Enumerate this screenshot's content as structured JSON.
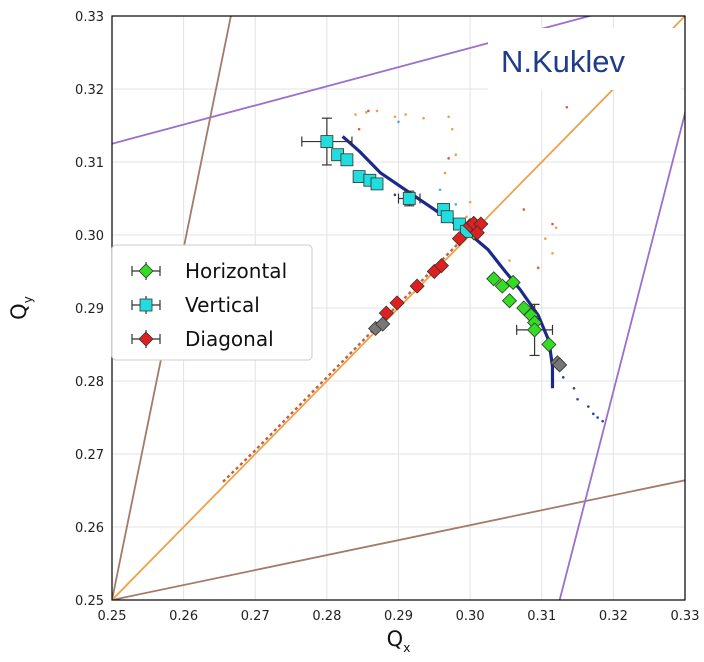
{
  "annotation": "N.Kuklev",
  "chart_data": {
    "type": "scatter",
    "xlabel": "Q",
    "xlabel_sub": "x",
    "ylabel": "Q",
    "ylabel_sub": "y",
    "xlim": [
      0.25,
      0.33
    ],
    "ylim": [
      0.25,
      0.33
    ],
    "x_ticks": [
      "0.25",
      "0.26",
      "0.27",
      "0.28",
      "0.29",
      "0.30",
      "0.31",
      "0.32",
      "0.33"
    ],
    "y_ticks": [
      "0.25",
      "0.26",
      "0.27",
      "0.28",
      "0.29",
      "0.30",
      "0.31",
      "0.32",
      "0.33"
    ],
    "grid": true,
    "legend_position": "center-left",
    "series": [
      {
        "name": "Horizontal",
        "color": "#33dd22",
        "marker": "diamond",
        "points": [
          [
            0.3005,
            0.3003
          ],
          [
            0.3033,
            0.294
          ],
          [
            0.3045,
            0.293
          ],
          [
            0.306,
            0.2935
          ],
          [
            0.3055,
            0.291
          ],
          [
            0.3075,
            0.29
          ],
          [
            0.3085,
            0.289
          ],
          [
            0.309,
            0.288
          ],
          [
            0.309,
            0.287
          ],
          [
            0.311,
            0.285
          ]
        ],
        "errors": [
          {
            "x": 0.309,
            "y": 0.287,
            "ex": 0.0025,
            "ey": 0.0035
          }
        ]
      },
      {
        "name": "Vertical",
        "color": "#22dddd",
        "marker": "square",
        "points": [
          [
            0.28,
            0.3128
          ],
          [
            0.2815,
            0.311
          ],
          [
            0.2828,
            0.3103
          ],
          [
            0.2845,
            0.308
          ],
          [
            0.286,
            0.3075
          ],
          [
            0.287,
            0.307
          ],
          [
            0.2915,
            0.305
          ],
          [
            0.2963,
            0.3035
          ],
          [
            0.2968,
            0.3025
          ],
          [
            0.2985,
            0.3015
          ],
          [
            0.2995,
            0.3005
          ]
        ],
        "errors": [
          {
            "x": 0.28,
            "y": 0.3128,
            "ex": 0.0035,
            "ey": 0.0032
          },
          {
            "x": 0.2915,
            "y": 0.305,
            "ex": 0.0015,
            "ey": 0.001
          }
        ]
      },
      {
        "name": "Diagonal",
        "color": "#e02020",
        "marker": "diamond",
        "points": [
          [
            0.2883,
            0.2893
          ],
          [
            0.2898,
            0.2907
          ],
          [
            0.2926,
            0.293
          ],
          [
            0.295,
            0.295
          ],
          [
            0.296,
            0.2958
          ],
          [
            0.2985,
            0.2995
          ],
          [
            0.3,
            0.3013
          ],
          [
            0.3005,
            0.3016
          ],
          [
            0.3015,
            0.3015
          ],
          [
            0.301,
            0.3003
          ]
        ],
        "errors": []
      }
    ],
    "grey_markers": [
      [
        0.2868,
        0.2872
      ],
      [
        0.2878,
        0.2878
      ],
      [
        0.3122,
        0.2825
      ],
      [
        0.3125,
        0.2822
      ]
    ],
    "resonance_lines": [
      {
        "color": "#a47a68",
        "points": [
          [
            0.25,
            0.25
          ],
          [
            0.2666,
            0.33
          ]
        ]
      },
      {
        "color": "#a47a68",
        "points": [
          [
            0.25,
            0.25
          ],
          [
            0.33,
            0.2664
          ]
        ]
      },
      {
        "color": "#f0a048",
        "points": [
          [
            0.25,
            0.25
          ],
          [
            0.33,
            0.33
          ]
        ]
      },
      {
        "color": "#9c6fcf",
        "points": [
          [
            0.25,
            0.3125
          ],
          [
            0.33,
            0.3335
          ]
        ]
      },
      {
        "color": "#9c6fcf",
        "points": [
          [
            0.3125,
            0.25
          ],
          [
            0.3335,
            0.33
          ]
        ]
      }
    ],
    "tune_track_1": [
      [
        0.2822,
        0.3135
      ],
      [
        0.2845,
        0.3115
      ],
      [
        0.2875,
        0.3085
      ],
      [
        0.2905,
        0.3065
      ],
      [
        0.2935,
        0.3045
      ],
      [
        0.2965,
        0.3025
      ],
      [
        0.2995,
        0.3005
      ],
      [
        0.3025,
        0.298
      ],
      [
        0.3045,
        0.2955
      ],
      [
        0.307,
        0.2925
      ],
      [
        0.3095,
        0.289
      ],
      [
        0.311,
        0.2855
      ],
      [
        0.3115,
        0.282
      ],
      [
        0.3115,
        0.279
      ]
    ],
    "tune_track_2": [
      [
        0.2655,
        0.2662
      ],
      [
        0.27,
        0.2705
      ],
      [
        0.275,
        0.2755
      ],
      [
        0.28,
        0.2805
      ],
      [
        0.285,
        0.2855
      ],
      [
        0.29,
        0.2905
      ],
      [
        0.295,
        0.2955
      ],
      [
        0.2985,
        0.299
      ]
    ],
    "scatter_dots": [
      {
        "color": "#f0a048",
        "pts": [
          [
            0.284,
            0.3165
          ],
          [
            0.2855,
            0.3168
          ],
          [
            0.287,
            0.317
          ],
          [
            0.2895,
            0.3162
          ],
          [
            0.291,
            0.3165
          ],
          [
            0.2935,
            0.316
          ],
          [
            0.297,
            0.3162
          ],
          [
            0.2975,
            0.3145
          ],
          [
            0.298,
            0.311
          ],
          [
            0.2965,
            0.3085
          ],
          [
            0.3,
            0.3045
          ],
          [
            0.2995,
            0.3025
          ],
          [
            0.3105,
            0.2995
          ],
          [
            0.312,
            0.301
          ],
          [
            0.3115,
            0.2975
          ],
          [
            0.3055,
            0.2965
          ]
        ]
      },
      {
        "color": "#e05a3a",
        "pts": [
          [
            0.2845,
            0.3145
          ],
          [
            0.2858,
            0.317
          ],
          [
            0.297,
            0.3105
          ],
          [
            0.3075,
            0.3035
          ],
          [
            0.3115,
            0.3015
          ],
          [
            0.3095,
            0.2955
          ],
          [
            0.3135,
            0.3175
          ]
        ]
      },
      {
        "color": "#2b3fa0",
        "pts": [
          [
            0.313,
            0.2805
          ],
          [
            0.3145,
            0.279
          ],
          [
            0.315,
            0.2775
          ],
          [
            0.3165,
            0.2765
          ],
          [
            0.3172,
            0.2755
          ],
          [
            0.3178,
            0.275
          ],
          [
            0.3185,
            0.2745
          ],
          [
            0.2865,
            0.307
          ],
          [
            0.2895,
            0.3055
          ]
        ]
      },
      {
        "color": "#4fb0e0",
        "pts": [
          [
            0.29,
            0.3155
          ],
          [
            0.2958,
            0.3062
          ],
          [
            0.298,
            0.3042
          ]
        ]
      }
    ]
  }
}
